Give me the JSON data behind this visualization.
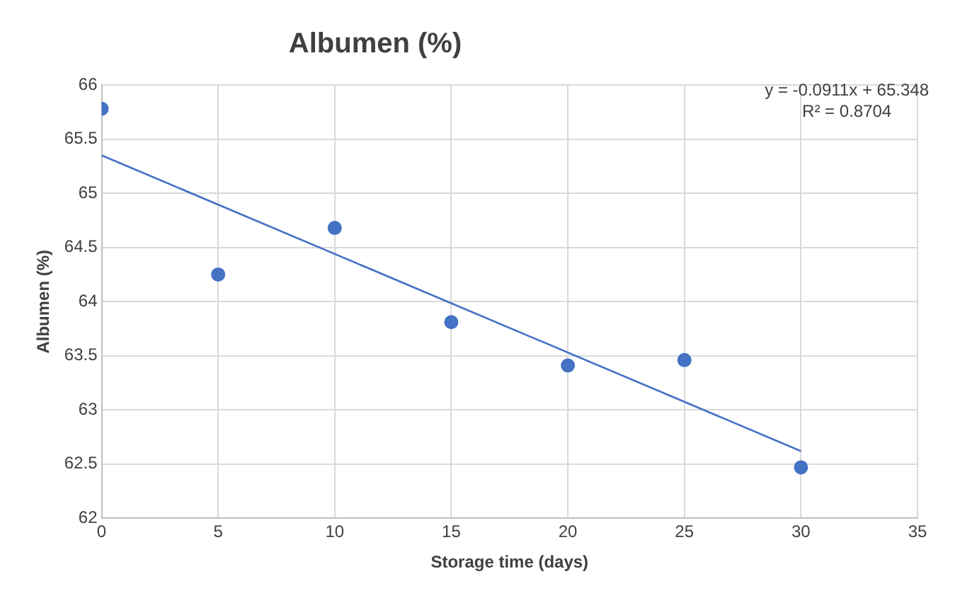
{
  "chart_data": {
    "type": "scatter",
    "title": "Albumen (%)",
    "xlabel": "Storage time (days)",
    "ylabel": "Albumen (%)",
    "x": [
      0,
      5,
      10,
      15,
      20,
      25,
      30
    ],
    "series": [
      {
        "color": "#4472c4",
        "marker": "circle",
        "values": [
          65.78,
          64.25,
          64.68,
          63.81,
          63.41,
          63.46,
          62.47
        ]
      },
      {
        "type": "line",
        "color": "#4472c4",
        "marker": "none",
        "x": [
          0,
          30
        ],
        "values": [
          65.35,
          62.62
        ]
      }
    ],
    "xlim": [
      0,
      35
    ],
    "xticks": [
      0,
      5,
      10,
      15,
      20,
      25,
      30,
      35
    ],
    "ylim": [
      62,
      66
    ],
    "yticks": [
      62,
      62.5,
      63,
      63.5,
      64,
      64.5,
      65,
      65.5,
      66
    ],
    "grid": true,
    "legend": false,
    "annotations": [
      "y = -0.0911x + 65.348",
      "R² = 0.8704"
    ]
  }
}
